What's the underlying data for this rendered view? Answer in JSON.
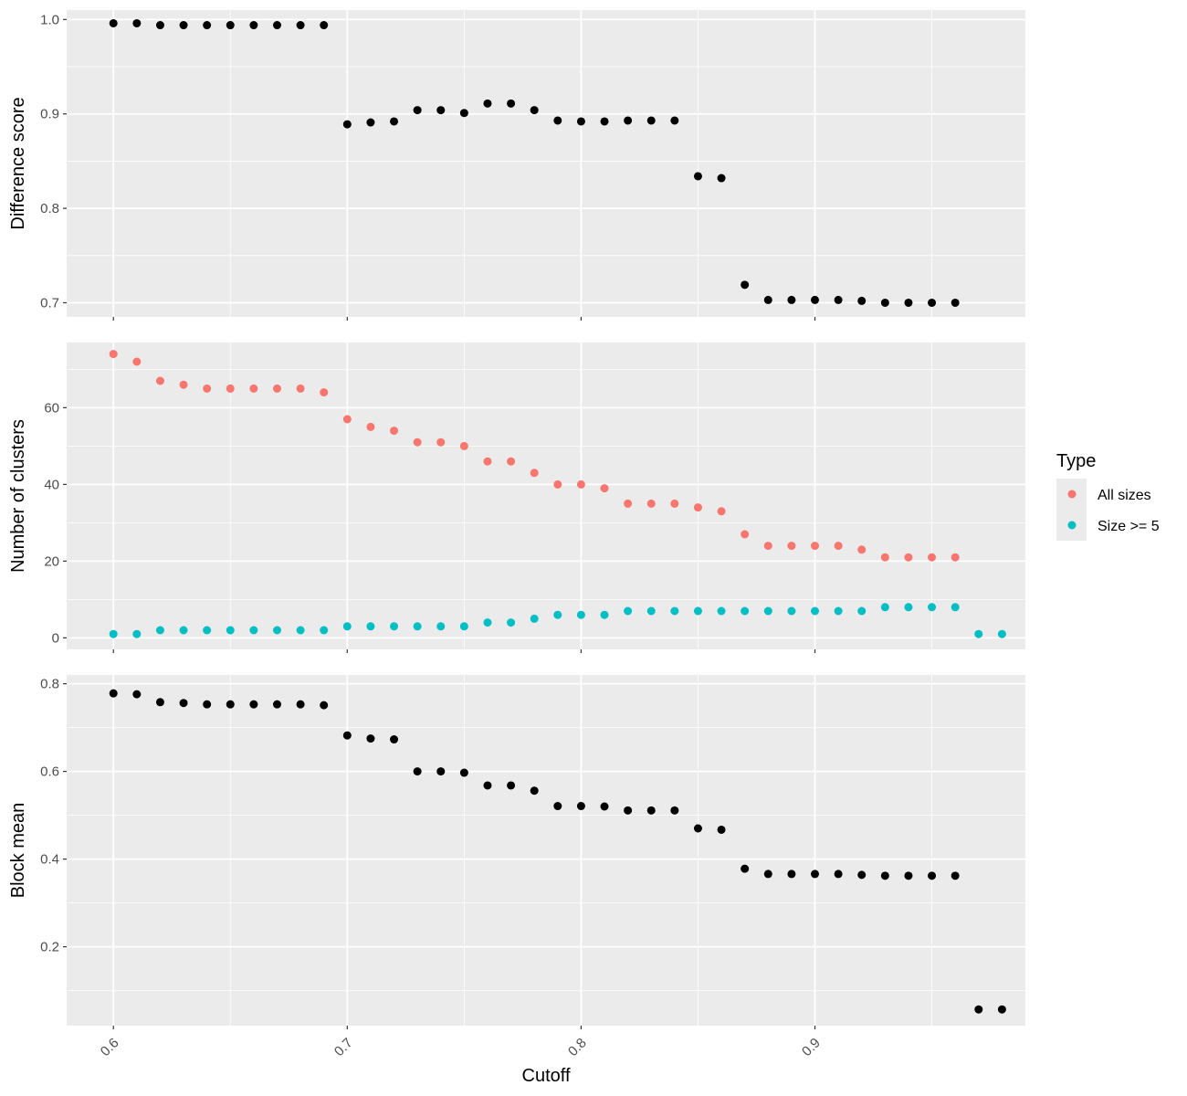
{
  "chart_data": {
    "type": "scatter",
    "x_axis": {
      "label": "Cutoff",
      "range": [
        0.58,
        0.99
      ],
      "ticks": [
        0.6,
        0.7,
        0.8,
        0.9
      ],
      "tick_labels": [
        "0.6",
        "0.7",
        "0.8",
        "0.9"
      ]
    },
    "panels": [
      {
        "ylabel": "Difference score",
        "ylim": [
          0.685,
          1.01
        ],
        "yticks": [
          0.7,
          0.8,
          0.9,
          1.0
        ],
        "ytick_labels": [
          "0.7",
          "0.8",
          "0.9",
          "1.0"
        ],
        "series": [
          {
            "color": "#000000",
            "x": [
              0.6,
              0.61,
              0.62,
              0.63,
              0.64,
              0.65,
              0.66,
              0.67,
              0.68,
              0.69,
              0.7,
              0.71,
              0.72,
              0.73,
              0.74,
              0.75,
              0.76,
              0.77,
              0.78,
              0.79,
              0.8,
              0.81,
              0.82,
              0.83,
              0.84,
              0.85,
              0.86,
              0.87,
              0.88,
              0.89,
              0.9,
              0.91,
              0.92,
              0.93,
              0.94,
              0.95,
              0.96
            ],
            "y": [
              0.996,
              0.996,
              0.994,
              0.994,
              0.994,
              0.994,
              0.994,
              0.994,
              0.994,
              0.994,
              0.889,
              0.891,
              0.892,
              0.904,
              0.904,
              0.901,
              0.911,
              0.911,
              0.904,
              0.893,
              0.892,
              0.892,
              0.893,
              0.893,
              0.893,
              0.834,
              0.832,
              0.719,
              0.703,
              0.703,
              0.703,
              0.703,
              0.702,
              0.7,
              0.7,
              0.7,
              0.7
            ]
          }
        ]
      },
      {
        "ylabel": "Number of clusters",
        "ylim": [
          -3,
          77
        ],
        "yticks": [
          0,
          20,
          40,
          60
        ],
        "ytick_labels": [
          "0",
          "20",
          "40",
          "60"
        ],
        "series": [
          {
            "name": "All sizes",
            "color": "#F8766D",
            "x": [
              0.6,
              0.61,
              0.62,
              0.63,
              0.64,
              0.65,
              0.66,
              0.67,
              0.68,
              0.69,
              0.7,
              0.71,
              0.72,
              0.73,
              0.74,
              0.75,
              0.76,
              0.77,
              0.78,
              0.79,
              0.8,
              0.81,
              0.82,
              0.83,
              0.84,
              0.85,
              0.86,
              0.87,
              0.88,
              0.89,
              0.9,
              0.91,
              0.92,
              0.93,
              0.94,
              0.95,
              0.96
            ],
            "y": [
              74,
              72,
              67,
              66,
              65,
              65,
              65,
              65,
              65,
              64,
              57,
              55,
              54,
              51,
              51,
              50,
              46,
              46,
              43,
              40,
              40,
              39,
              35,
              35,
              35,
              34,
              33,
              27,
              24,
              24,
              24,
              24,
              23,
              21,
              21,
              21,
              21
            ]
          },
          {
            "name": "Size >= 5",
            "color": "#00BFC4",
            "x": [
              0.6,
              0.61,
              0.62,
              0.63,
              0.64,
              0.65,
              0.66,
              0.67,
              0.68,
              0.69,
              0.7,
              0.71,
              0.72,
              0.73,
              0.74,
              0.75,
              0.76,
              0.77,
              0.78,
              0.79,
              0.8,
              0.81,
              0.82,
              0.83,
              0.84,
              0.85,
              0.86,
              0.87,
              0.88,
              0.89,
              0.9,
              0.91,
              0.92,
              0.93,
              0.94,
              0.95,
              0.96,
              0.97,
              0.98
            ],
            "y": [
              1,
              1,
              2,
              2,
              2,
              2,
              2,
              2,
              2,
              2,
              3,
              3,
              3,
              3,
              3,
              3,
              4,
              4,
              5,
              6,
              6,
              6,
              7,
              7,
              7,
              7,
              7,
              7,
              7,
              7,
              7,
              7,
              7,
              8,
              8,
              8,
              8,
              1,
              1
            ]
          }
        ]
      },
      {
        "ylabel": "Block mean",
        "ylim": [
          0.02,
          0.82
        ],
        "yticks": [
          0.2,
          0.4,
          0.6,
          0.8
        ],
        "ytick_labels": [
          "0.2",
          "0.4",
          "0.6",
          "0.8"
        ],
        "series": [
          {
            "color": "#000000",
            "x": [
              0.6,
              0.61,
              0.62,
              0.63,
              0.64,
              0.65,
              0.66,
              0.67,
              0.68,
              0.69,
              0.7,
              0.71,
              0.72,
              0.73,
              0.74,
              0.75,
              0.76,
              0.77,
              0.78,
              0.79,
              0.8,
              0.81,
              0.82,
              0.83,
              0.84,
              0.85,
              0.86,
              0.87,
              0.88,
              0.89,
              0.9,
              0.91,
              0.92,
              0.93,
              0.94,
              0.95,
              0.96,
              0.97,
              0.98
            ],
            "y": [
              0.778,
              0.776,
              0.758,
              0.756,
              0.753,
              0.753,
              0.753,
              0.753,
              0.753,
              0.751,
              0.682,
              0.675,
              0.673,
              0.6,
              0.6,
              0.597,
              0.568,
              0.568,
              0.556,
              0.521,
              0.521,
              0.52,
              0.511,
              0.511,
              0.511,
              0.47,
              0.467,
              0.378,
              0.366,
              0.366,
              0.366,
              0.366,
              0.364,
              0.362,
              0.362,
              0.362,
              0.362,
              0.057,
              0.057
            ]
          }
        ]
      }
    ],
    "grid": true,
    "legend": {
      "title": "Type",
      "placement": "right",
      "entries": [
        {
          "label": "All sizes",
          "color": "#F8766D"
        },
        {
          "label": "Size >= 5",
          "color": "#00BFC4"
        }
      ]
    }
  }
}
